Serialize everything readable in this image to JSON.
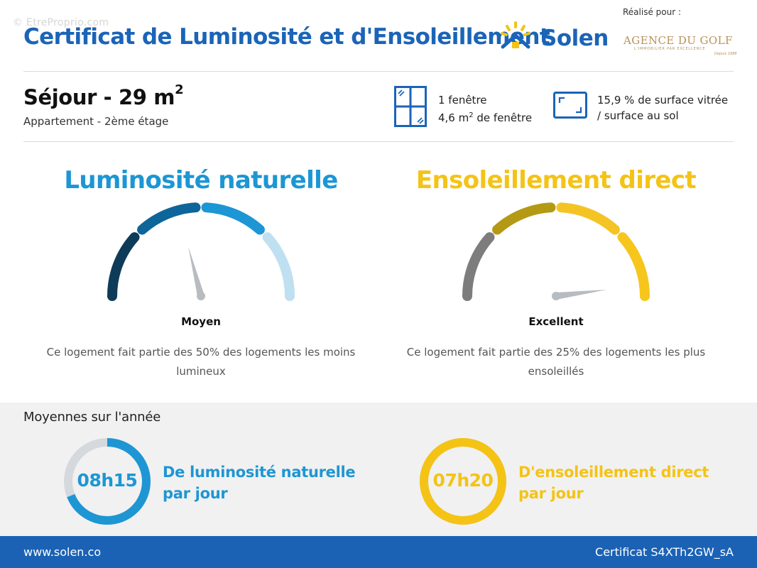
{
  "header": {
    "watermark": "© EtreProprio.com",
    "title": "Certificat de Luminosité et d'Ensoleillement",
    "brand": "Solen",
    "made_for_label": "Réalisé pour :",
    "agency_name": "AGENCE DU GOLF",
    "agency_tagline": "L'IMMOBILIER PAR EXCELLENCE",
    "agency_year": "Depuis 1988"
  },
  "room": {
    "name": "Séjour - 29 m",
    "area_exponent": "2",
    "location": "Appartement - 2ème étage",
    "windows_count": "1 fenêtre",
    "window_area_prefix": "4,6 m",
    "window_area_exponent": "2",
    "window_area_suffix": " de fenêtre",
    "glazed_ratio_line1": "15,9 % de surface vitrée",
    "glazed_ratio_line2": "/ surface au sol"
  },
  "luminosity": {
    "title": "Luminosité naturelle",
    "level": "Moyen",
    "description": "Ce logement fait partie des 50% des logements les moins lumineux",
    "level_index": 2,
    "level_count": 4,
    "needle_fraction": 0.42,
    "colors": [
      "#0e3c58",
      "#0e6599",
      "#1c96d4",
      "#bfe0f1"
    ],
    "color": "#1c96d4"
  },
  "sunshine": {
    "title": "Ensoleillement direct",
    "level": "Excellent",
    "description": "Ce logement fait partie des 25% des logements les plus ensoleillés",
    "level_index": 4,
    "level_count": 4,
    "needle_fraction": 0.96,
    "colors": [
      "#7d7d7d",
      "#b49a14",
      "#f3c424",
      "#f6c61c"
    ],
    "color": "#f4c316"
  },
  "averages": {
    "title": "Moyennes sur l'année",
    "luminosity": {
      "value": "08h15",
      "caption_line1": "De luminosité naturelle",
      "caption_line2": "par jour",
      "fraction": 0.69,
      "color": "#1e96d3",
      "track_color": "#d5d9de"
    },
    "sunshine": {
      "value": "07h20",
      "caption_line1": "D'ensoleillement direct",
      "caption_line2": "par jour",
      "fraction": 1.0,
      "color": "#f4c316",
      "track_color": "#d5d9de"
    }
  },
  "footer": {
    "url": "www.solen.co",
    "certificate": "Certificat S4XTh2GW_sA"
  }
}
